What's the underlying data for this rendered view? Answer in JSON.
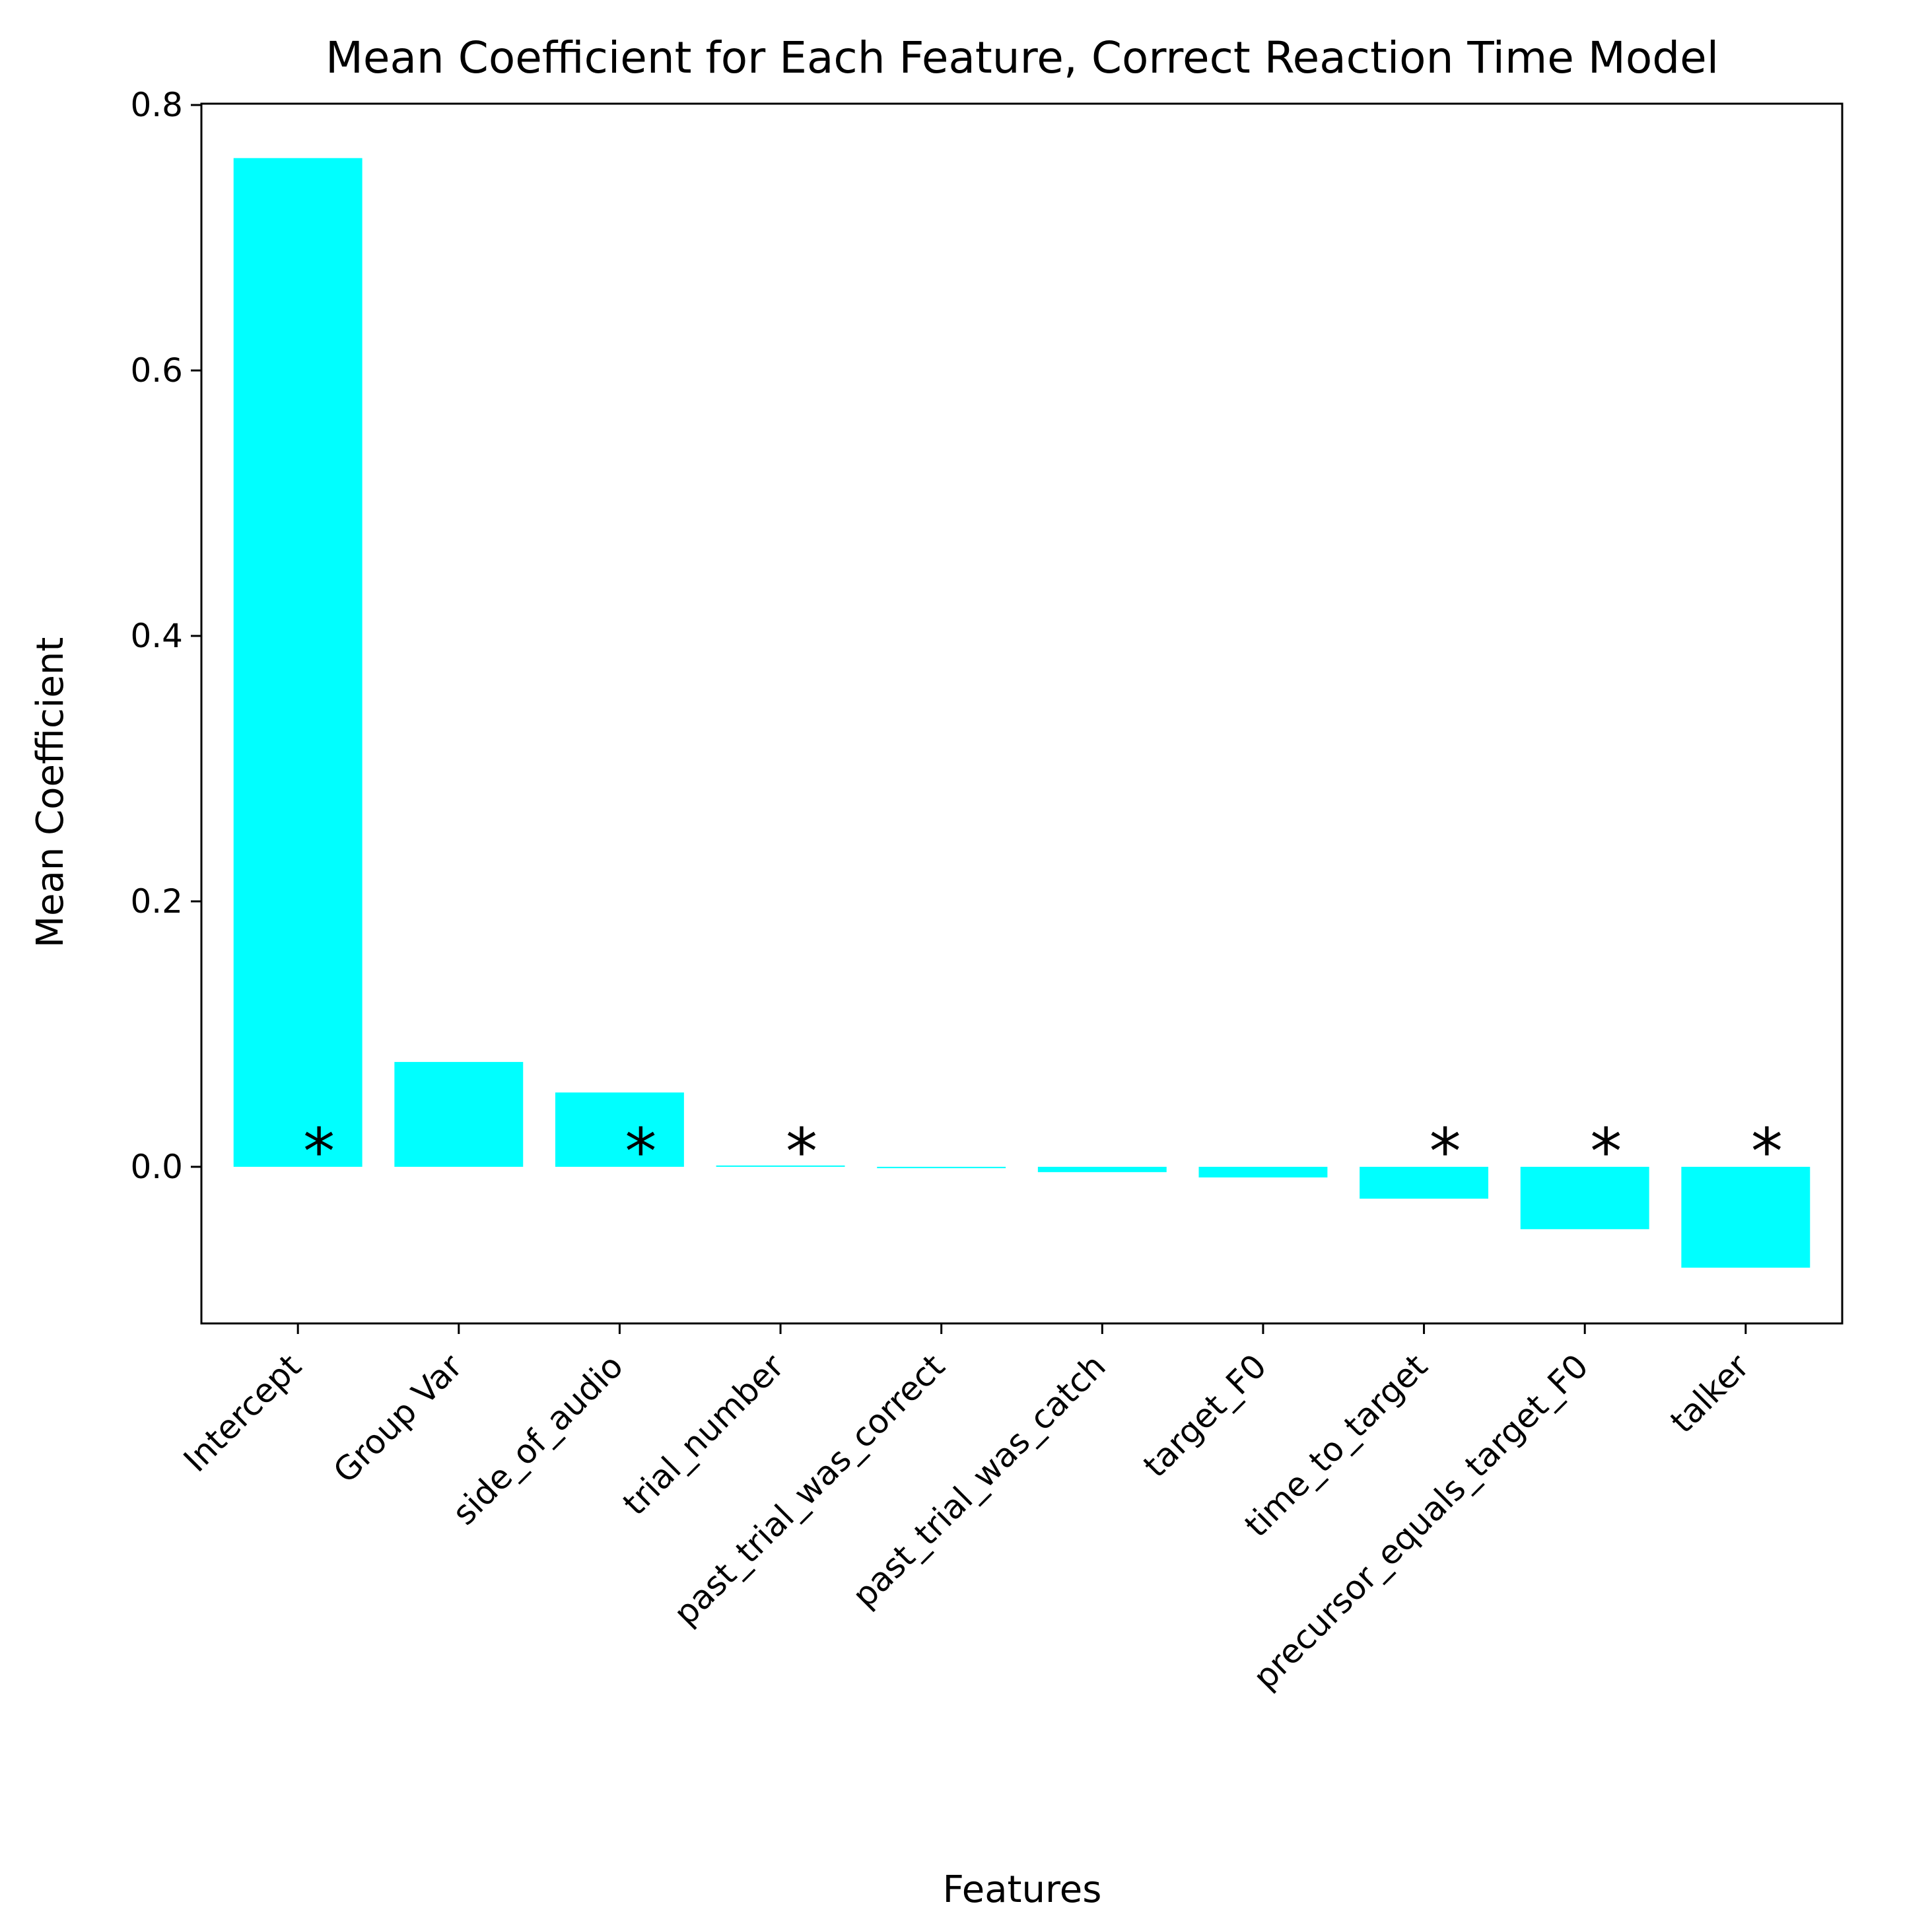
{
  "chart_data": {
    "type": "bar",
    "title": "Mean Coefficient for Each Feature, Correct Reaction Time Model",
    "xlabel": "Features",
    "ylabel": "Mean Coefficient",
    "categories": [
      "Intercept",
      "Group Var",
      "side_of_audio",
      "trial_number",
      "past_trial_was_correct",
      "past_trial_was_catch",
      "target_F0",
      "time_to_target",
      "precursor_equals_target_F0",
      "talker"
    ],
    "values": [
      0.76,
      0.079,
      0.056,
      0.001,
      -0.001,
      -0.004,
      -0.008,
      -0.024,
      -0.047,
      -0.076
    ],
    "significance_markers": [
      "*",
      "",
      "*",
      "*",
      "",
      "",
      "",
      "*",
      "*",
      "*"
    ],
    "ylim": [
      -0.118,
      0.801
    ],
    "yticks": [
      0.0,
      0.2,
      0.4,
      0.6,
      0.8
    ],
    "ytick_labels": [
      "0.0",
      "0.2",
      "0.4",
      "0.6",
      "0.8"
    ],
    "bar_color": "#00ffff",
    "grid": false,
    "legend": "none"
  }
}
